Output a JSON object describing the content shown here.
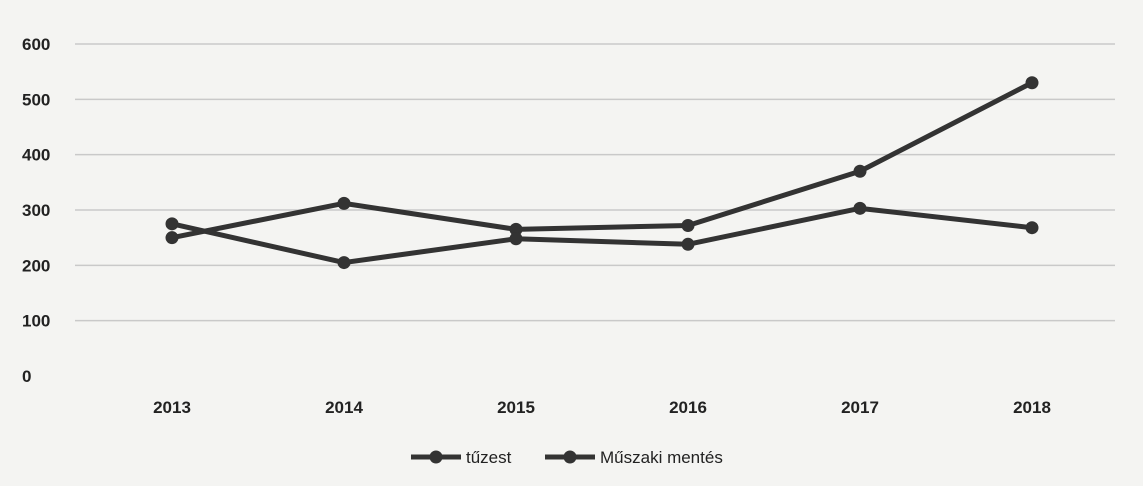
{
  "chart_data": {
    "type": "line",
    "title": "",
    "xlabel": "",
    "ylabel": "",
    "categories": [
      "2013",
      "2014",
      "2015",
      "2016",
      "2017",
      "2018"
    ],
    "ylim": [
      0,
      600
    ],
    "yticks": [
      0,
      100,
      200,
      300,
      400,
      500,
      600
    ],
    "grid": true,
    "legend_position": "bottom",
    "series": [
      {
        "name": "tűzest",
        "values": [
          250,
          312,
          265,
          272,
          370,
          530
        ],
        "color": "#333333"
      },
      {
        "name": "Műszaki mentés",
        "values": [
          275,
          205,
          248,
          238,
          303,
          268
        ],
        "color": "#333333"
      }
    ]
  }
}
